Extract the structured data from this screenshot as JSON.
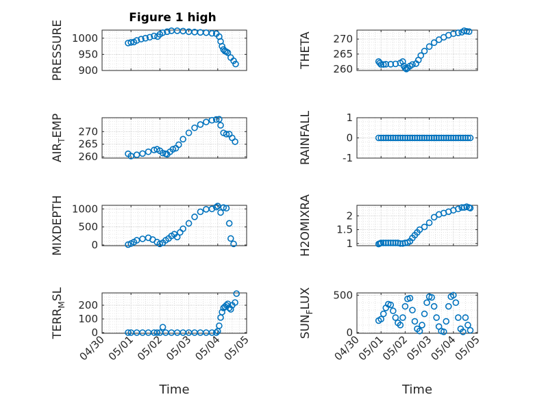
{
  "figure": {
    "title": "Figure 1 high",
    "marker_color": "#0072BD",
    "grid": "major+minor dotted",
    "x_axis_label": "Time"
  },
  "chart_data": [
    {
      "type": "scatter",
      "ylabel": "PRESSURE",
      "xlabel": "",
      "title": "Figure 1 high",
      "xlim": [
        0,
        5
      ],
      "ylim": [
        900,
        1025
      ],
      "yticks": [
        900,
        950,
        1000
      ],
      "xticks": [
        "04/30",
        "05/01",
        "05/02",
        "05/03",
        "05/04",
        "05/05"
      ],
      "x": [
        0.9,
        1.0,
        1.1,
        1.2,
        1.35,
        1.5,
        1.65,
        1.8,
        1.92,
        2.0,
        2.1,
        2.25,
        2.4,
        2.6,
        2.8,
        3.0,
        3.2,
        3.4,
        3.6,
        3.8,
        3.95,
        4.05,
        4.1,
        4.15,
        4.2,
        4.25,
        4.3,
        4.35,
        4.45,
        4.55,
        4.62
      ],
      "y": [
        985,
        987,
        988,
        993,
        997,
        1000,
        1003,
        1007,
        1005,
        1012,
        1017,
        1020,
        1023,
        1023,
        1022,
        1020,
        1019,
        1018,
        1017,
        1015,
        1014,
        1005,
        990,
        975,
        965,
        960,
        958,
        955,
        940,
        930,
        920
      ]
    },
    {
      "type": "scatter",
      "ylabel": "THETA",
      "xlabel": "",
      "xlim": [
        0,
        5
      ],
      "ylim": [
        259.5,
        273
      ],
      "yticks": [
        260,
        265,
        270
      ],
      "xticks": [
        "04/30",
        "05/01",
        "05/02",
        "05/03",
        "05/04",
        "05/05"
      ],
      "x": [
        0.9,
        0.95,
        1.0,
        1.1,
        1.2,
        1.4,
        1.6,
        1.8,
        1.9,
        1.95,
        2.0,
        2.05,
        2.1,
        2.2,
        2.3,
        2.45,
        2.55,
        2.65,
        2.8,
        3.0,
        3.2,
        3.4,
        3.6,
        3.8,
        4.0,
        4.2,
        4.35,
        4.45,
        4.55,
        4.65
      ],
      "y": [
        262.5,
        262.0,
        261.5,
        261.5,
        261.6,
        261.6,
        261.7,
        262.0,
        262.5,
        261.0,
        260.3,
        260.0,
        260.3,
        261.0,
        261.5,
        261.8,
        263.0,
        264.5,
        266.0,
        267.5,
        268.8,
        269.8,
        270.6,
        271.3,
        271.8,
        272.1,
        272.3,
        272.8,
        272.6,
        272.5
      ]
    },
    {
      "type": "scatter",
      "ylabel": "AIR_TEMP",
      "xlabel": "",
      "xlim": [
        0,
        5
      ],
      "ylim": [
        259.5,
        275.5
      ],
      "yticks": [
        260,
        265,
        270
      ],
      "xticks": [
        "04/30",
        "05/01",
        "05/02",
        "05/03",
        "05/04",
        "05/05"
      ],
      "x": [
        0.9,
        1.0,
        1.2,
        1.4,
        1.6,
        1.8,
        1.9,
        2.0,
        2.1,
        2.2,
        2.25,
        2.35,
        2.45,
        2.55,
        2.65,
        2.8,
        3.0,
        3.2,
        3.4,
        3.6,
        3.8,
        3.95,
        4.05,
        4.1,
        4.2,
        4.3,
        4.4,
        4.5,
        4.6
      ],
      "y": [
        261.2,
        260.3,
        260.8,
        261.3,
        262.0,
        262.7,
        263.0,
        262.4,
        261.5,
        261.2,
        261.0,
        262.0,
        263.0,
        263.4,
        264.8,
        267.0,
        269.5,
        271.5,
        272.8,
        273.8,
        274.5,
        274.8,
        274.9,
        272.5,
        269.5,
        269.0,
        269.0,
        267.5,
        266.0
      ]
    },
    {
      "type": "scatter",
      "ylabel": "RAINFALL",
      "xlabel": "",
      "xlim": [
        0,
        5
      ],
      "ylim": [
        -1,
        1
      ],
      "yticks": [
        -1,
        0,
        1
      ],
      "xticks": [
        "04/30",
        "05/01",
        "05/02",
        "05/03",
        "05/04",
        "05/05"
      ],
      "x": [
        0.9,
        1.0,
        1.1,
        1.2,
        1.3,
        1.4,
        1.5,
        1.6,
        1.7,
        1.8,
        1.9,
        2.0,
        2.1,
        2.2,
        2.3,
        2.4,
        2.5,
        2.6,
        2.7,
        2.8,
        2.9,
        3.0,
        3.1,
        3.2,
        3.3,
        3.4,
        3.5,
        3.6,
        3.7,
        3.8,
        3.9,
        4.0,
        4.1,
        4.2,
        4.3,
        4.4,
        4.5,
        4.6,
        4.7
      ],
      "y": [
        0,
        0,
        0,
        0,
        0,
        0,
        0,
        0,
        0,
        0,
        0,
        0,
        0,
        0,
        0,
        0,
        0,
        0,
        0,
        0,
        0,
        0,
        0,
        0,
        0,
        0,
        0,
        0,
        0,
        0,
        0,
        0,
        0,
        0,
        0,
        0,
        0,
        0,
        0
      ]
    },
    {
      "type": "scatter",
      "ylabel": "MIXDEPTH",
      "xlabel": "",
      "xlim": [
        0,
        5
      ],
      "ylim": [
        -20,
        1100
      ],
      "yticks": [
        0,
        500,
        1000
      ],
      "xticks": [
        "04/30",
        "05/01",
        "05/02",
        "05/03",
        "05/04",
        "05/05"
      ],
      "x": [
        0.9,
        1.0,
        1.1,
        1.2,
        1.4,
        1.6,
        1.75,
        1.9,
        2.0,
        2.1,
        2.2,
        2.3,
        2.4,
        2.5,
        2.6,
        2.7,
        2.8,
        3.0,
        3.2,
        3.4,
        3.6,
        3.8,
        3.95,
        4.0,
        4.1,
        4.2,
        4.3,
        4.4,
        4.45,
        4.55
      ],
      "y": [
        10,
        40,
        80,
        130,
        170,
        200,
        150,
        80,
        30,
        60,
        130,
        180,
        250,
        300,
        220,
        350,
        450,
        600,
        780,
        920,
        990,
        1000,
        1050,
        1080,
        900,
        1040,
        1020,
        600,
        180,
        30
      ]
    },
    {
      "type": "scatter",
      "ylabel": "H2OMIXRA",
      "xlabel": "",
      "xlim": [
        0,
        5
      ],
      "ylim": [
        0.92,
        2.38
      ],
      "yticks": [
        1,
        1.5,
        2
      ],
      "xticks": [
        "04/30",
        "05/01",
        "05/02",
        "05/03",
        "05/04",
        "05/05"
      ],
      "x": [
        0.9,
        0.95,
        1.0,
        1.1,
        1.2,
        1.3,
        1.4,
        1.5,
        1.6,
        1.7,
        1.8,
        1.9,
        2.0,
        2.1,
        2.2,
        2.3,
        2.4,
        2.5,
        2.6,
        2.8,
        3.0,
        3.2,
        3.4,
        3.6,
        3.8,
        4.0,
        4.2,
        4.35,
        4.45,
        4.55,
        4.65,
        4.7
      ],
      "y": [
        0.98,
        1.0,
        1.02,
        1.02,
        1.02,
        1.02,
        1.02,
        1.02,
        1.02,
        1.02,
        1.0,
        1.0,
        1.02,
        1.03,
        1.08,
        1.2,
        1.3,
        1.4,
        1.5,
        1.6,
        1.75,
        1.95,
        2.05,
        2.1,
        2.15,
        2.2,
        2.25,
        2.3,
        2.3,
        2.33,
        2.3,
        2.28
      ]
    },
    {
      "type": "scatter",
      "ylabel": "TERR_MSL",
      "xlabel": "Time",
      "xlim": [
        0,
        5
      ],
      "ylim": [
        -5,
        290
      ],
      "yticks": [
        0,
        100,
        200
      ],
      "xticks": [
        "04/30",
        "05/01",
        "05/02",
        "05/03",
        "05/04",
        "05/05"
      ],
      "x": [
        0.9,
        1.0,
        1.2,
        1.4,
        1.6,
        1.8,
        1.9,
        2.0,
        2.1,
        2.2,
        2.4,
        2.6,
        2.8,
        3.0,
        3.2,
        3.4,
        3.6,
        3.8,
        3.95,
        4.0,
        4.05,
        4.1,
        4.15,
        4.2,
        4.25,
        4.3,
        4.35,
        4.4,
        4.45,
        4.5,
        4.6,
        4.65
      ],
      "y": [
        0,
        0,
        0,
        0,
        0,
        0,
        0,
        0,
        40,
        0,
        0,
        0,
        0,
        0,
        0,
        0,
        0,
        0,
        0,
        10,
        50,
        110,
        150,
        180,
        190,
        200,
        210,
        180,
        170,
        200,
        220,
        285
      ]
    },
    {
      "type": "scatter",
      "ylabel": "SUN_FLUX",
      "xlabel": "Time",
      "xlim": [
        0,
        5
      ],
      "ylim": [
        -10,
        530
      ],
      "yticks": [
        0,
        500
      ],
      "xticks": [
        "04/30",
        "05/01",
        "05/02",
        "05/03",
        "05/04",
        "05/05"
      ],
      "x": [
        0.9,
        1.0,
        1.1,
        1.2,
        1.3,
        1.4,
        1.5,
        1.6,
        1.7,
        1.8,
        1.9,
        2.0,
        2.1,
        2.2,
        2.3,
        2.4,
        2.5,
        2.6,
        2.7,
        2.8,
        2.9,
        3.0,
        3.1,
        3.2,
        3.3,
        3.4,
        3.5,
        3.6,
        3.7,
        3.8,
        3.9,
        4.0,
        4.1,
        4.2,
        4.3,
        4.4,
        4.5,
        4.6,
        4.7
      ],
      "y": [
        160,
        180,
        250,
        330,
        380,
        370,
        290,
        200,
        130,
        100,
        200,
        350,
        450,
        460,
        300,
        150,
        50,
        20,
        100,
        250,
        400,
        480,
        470,
        350,
        200,
        80,
        20,
        10,
        150,
        350,
        480,
        500,
        400,
        200,
        50,
        10,
        200,
        100,
        30
      ]
    }
  ]
}
